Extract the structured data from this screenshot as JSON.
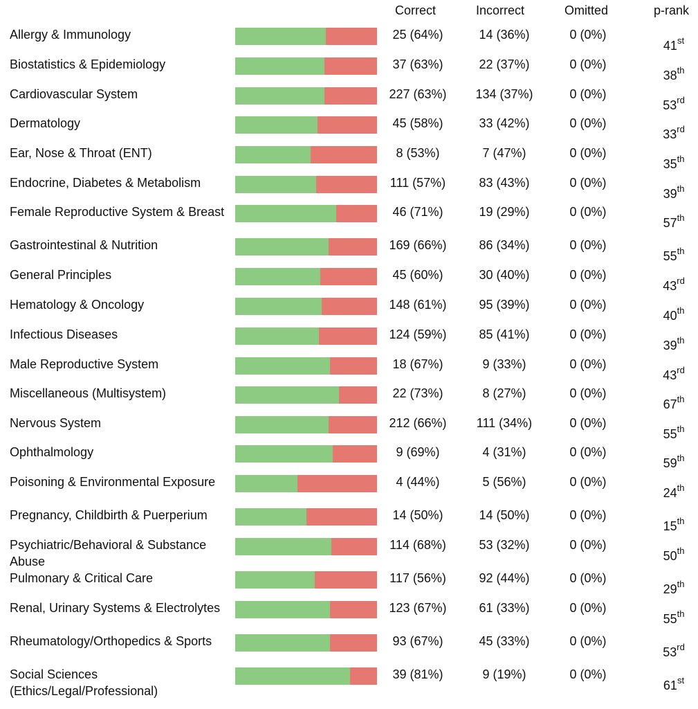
{
  "colors": {
    "correct": "#8dcb82",
    "incorrect": "#e57971"
  },
  "headers": {
    "correct": "Correct",
    "incorrect": "Incorrect",
    "omitted": "Omitted",
    "prank": "p-rank"
  },
  "rows": [
    {
      "subject": "Allergy & Immunology",
      "correct": "25 (64%)",
      "incorrect": "14 (36%)",
      "omitted": "0 (0%)",
      "rank": "41",
      "suffix": "st",
      "pct": 64
    },
    {
      "subject": "Biostatistics & Epidemiology",
      "correct": "37 (63%)",
      "incorrect": "22 (37%)",
      "omitted": "0 (0%)",
      "rank": "38",
      "suffix": "th",
      "pct": 63
    },
    {
      "subject": "Cardiovascular System",
      "correct": "227 (63%)",
      "incorrect": "134 (37%)",
      "omitted": "0 (0%)",
      "rank": "53",
      "suffix": "rd",
      "pct": 63
    },
    {
      "subject": "Dermatology",
      "correct": "45 (58%)",
      "incorrect": "33 (42%)",
      "omitted": "0 (0%)",
      "rank": "33",
      "suffix": "rd",
      "pct": 58
    },
    {
      "subject": "Ear, Nose & Throat (ENT)",
      "correct": "8 (53%)",
      "incorrect": "7 (47%)",
      "omitted": "0 (0%)",
      "rank": "35",
      "suffix": "th",
      "pct": 53
    },
    {
      "subject": "Endocrine, Diabetes & Metabolism",
      "correct": "111 (57%)",
      "incorrect": "83 (43%)",
      "omitted": "0 (0%)",
      "rank": "39",
      "suffix": "th",
      "pct": 57
    },
    {
      "subject": "Female Reproductive System & Breast",
      "correct": "46 (71%)",
      "incorrect": "19 (29%)",
      "omitted": "0 (0%)",
      "rank": "57",
      "suffix": "th",
      "pct": 71
    },
    {
      "subject": "Gastrointestinal & Nutrition",
      "correct": "169 (66%)",
      "incorrect": "86 (34%)",
      "omitted": "0 (0%)",
      "rank": "55",
      "suffix": "th",
      "pct": 66
    },
    {
      "subject": "General Principles",
      "correct": "45 (60%)",
      "incorrect": "30 (40%)",
      "omitted": "0 (0%)",
      "rank": "43",
      "suffix": "rd",
      "pct": 60
    },
    {
      "subject": "Hematology & Oncology",
      "correct": "148 (61%)",
      "incorrect": "95 (39%)",
      "omitted": "0 (0%)",
      "rank": "40",
      "suffix": "th",
      "pct": 61
    },
    {
      "subject": "Infectious Diseases",
      "correct": "124 (59%)",
      "incorrect": "85 (41%)",
      "omitted": "0 (0%)",
      "rank": "39",
      "suffix": "th",
      "pct": 59
    },
    {
      "subject": "Male Reproductive System",
      "correct": "18 (67%)",
      "incorrect": "9 (33%)",
      "omitted": "0 (0%)",
      "rank": "43",
      "suffix": "rd",
      "pct": 67
    },
    {
      "subject": "Miscellaneous (Multisystem)",
      "correct": "22 (73%)",
      "incorrect": "8 (27%)",
      "omitted": "0 (0%)",
      "rank": "67",
      "suffix": "th",
      "pct": 73
    },
    {
      "subject": "Nervous System",
      "correct": "212 (66%)",
      "incorrect": "111 (34%)",
      "omitted": "0 (0%)",
      "rank": "55",
      "suffix": "th",
      "pct": 66
    },
    {
      "subject": "Ophthalmology",
      "correct": "9 (69%)",
      "incorrect": "4 (31%)",
      "omitted": "0 (0%)",
      "rank": "59",
      "suffix": "th",
      "pct": 69
    },
    {
      "subject": "Poisoning & Environmental Exposure",
      "correct": "4 (44%)",
      "incorrect": "5 (56%)",
      "omitted": "0 (0%)",
      "rank": "24",
      "suffix": "th",
      "pct": 44
    },
    {
      "subject": "Pregnancy, Childbirth & Puerperium",
      "correct": "14 (50%)",
      "incorrect": "14 (50%)",
      "omitted": "0 (0%)",
      "rank": "15",
      "suffix": "th",
      "pct": 50
    },
    {
      "subject": "Psychiatric/Behavioral & Substance Abuse",
      "correct": "114 (68%)",
      "incorrect": "53 (32%)",
      "omitted": "0 (0%)",
      "rank": "50",
      "suffix": "th",
      "pct": 68
    },
    {
      "subject": "Pulmonary & Critical Care",
      "correct": "117 (56%)",
      "incorrect": "92 (44%)",
      "omitted": "0 (0%)",
      "rank": "29",
      "suffix": "th",
      "pct": 56
    },
    {
      "subject": "Renal, Urinary Systems & Electrolytes",
      "correct": "123 (67%)",
      "incorrect": "61 (33%)",
      "omitted": "0 (0%)",
      "rank": "55",
      "suffix": "th",
      "pct": 67
    },
    {
      "subject": "Rheumatology/Orthopedics & Sports",
      "correct": "93 (67%)",
      "incorrect": "45 (33%)",
      "omitted": "0 (0%)",
      "rank": "53",
      "suffix": "rd",
      "pct": 67
    },
    {
      "subject": "Social Sciences (Ethics/Legal/Professional)",
      "correct": "39 (81%)",
      "incorrect": "9 (19%)",
      "omitted": "0 (0%)",
      "rank": "61",
      "suffix": "st",
      "pct": 81
    }
  ]
}
